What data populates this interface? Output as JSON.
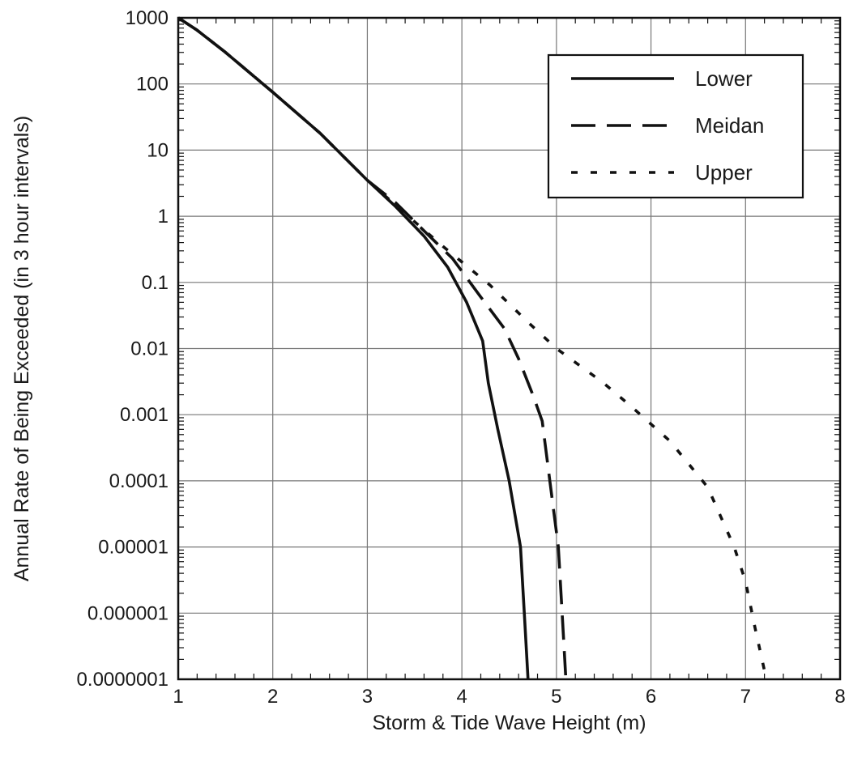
{
  "chart_data": {
    "type": "line",
    "xlabel": "Storm & Tide Wave Height (m)",
    "ylabel": "Annual Rate of Being Exceeded (in 3 hour intervals)",
    "xlim": [
      1,
      8
    ],
    "ylim": [
      1e-07,
      1000
    ],
    "y_scale": "log",
    "x_ticks": [
      "1",
      "2",
      "3",
      "4",
      "5",
      "6",
      "7",
      "8"
    ],
    "y_ticks": [
      "1000",
      "100",
      "10",
      "1",
      "0.1",
      "0.01",
      "0.001",
      "0.0001",
      "0.00001",
      "0.000001",
      "0.0000001"
    ],
    "grid": true,
    "legend_position": "top-right",
    "series": [
      {
        "name": "Lower",
        "style": "solid",
        "points": [
          [
            1.0,
            1000
          ],
          [
            1.2,
            650
          ],
          [
            1.5,
            300
          ],
          [
            2.0,
            75
          ],
          [
            2.5,
            18
          ],
          [
            3.0,
            3.5
          ],
          [
            3.3,
            1.4
          ],
          [
            3.6,
            0.5
          ],
          [
            3.85,
            0.17
          ],
          [
            4.05,
            0.05
          ],
          [
            4.22,
            0.013
          ],
          [
            4.28,
            0.003
          ],
          [
            4.38,
            0.0006
          ],
          [
            4.5,
            0.0001
          ],
          [
            4.62,
            1e-05
          ],
          [
            4.66,
            1e-06
          ],
          [
            4.7,
            1e-07
          ]
        ]
      },
      {
        "name": "Meidan",
        "style": "dashed",
        "points": [
          [
            1.0,
            1000
          ],
          [
            1.2,
            650
          ],
          [
            1.5,
            300
          ],
          [
            2.0,
            75
          ],
          [
            2.5,
            18
          ],
          [
            3.0,
            3.5
          ],
          [
            3.3,
            1.6
          ],
          [
            3.6,
            0.6
          ],
          [
            3.9,
            0.23
          ],
          [
            4.2,
            0.06
          ],
          [
            4.45,
            0.02
          ],
          [
            4.6,
            0.007
          ],
          [
            4.75,
            0.002
          ],
          [
            4.85,
            0.0008
          ],
          [
            4.93,
            0.0001
          ],
          [
            5.02,
            1e-05
          ],
          [
            5.06,
            1e-06
          ],
          [
            5.1,
            1e-07
          ]
        ]
      },
      {
        "name": "Upper",
        "style": "dotted",
        "points": [
          [
            1.0,
            1000
          ],
          [
            1.2,
            650
          ],
          [
            1.5,
            300
          ],
          [
            2.0,
            75
          ],
          [
            2.5,
            18
          ],
          [
            3.0,
            3.5
          ],
          [
            3.4,
            1.1
          ],
          [
            3.8,
            0.35
          ],
          [
            4.3,
            0.09
          ],
          [
            4.7,
            0.025
          ],
          [
            5.0,
            0.01
          ],
          [
            5.5,
            0.003
          ],
          [
            5.8,
            0.0013
          ],
          [
            6.2,
            0.0004
          ],
          [
            6.6,
            8e-05
          ],
          [
            6.88,
            1e-05
          ],
          [
            7.0,
            3e-06
          ],
          [
            7.1,
            6e-07
          ],
          [
            7.22,
            1e-07
          ]
        ]
      }
    ]
  }
}
